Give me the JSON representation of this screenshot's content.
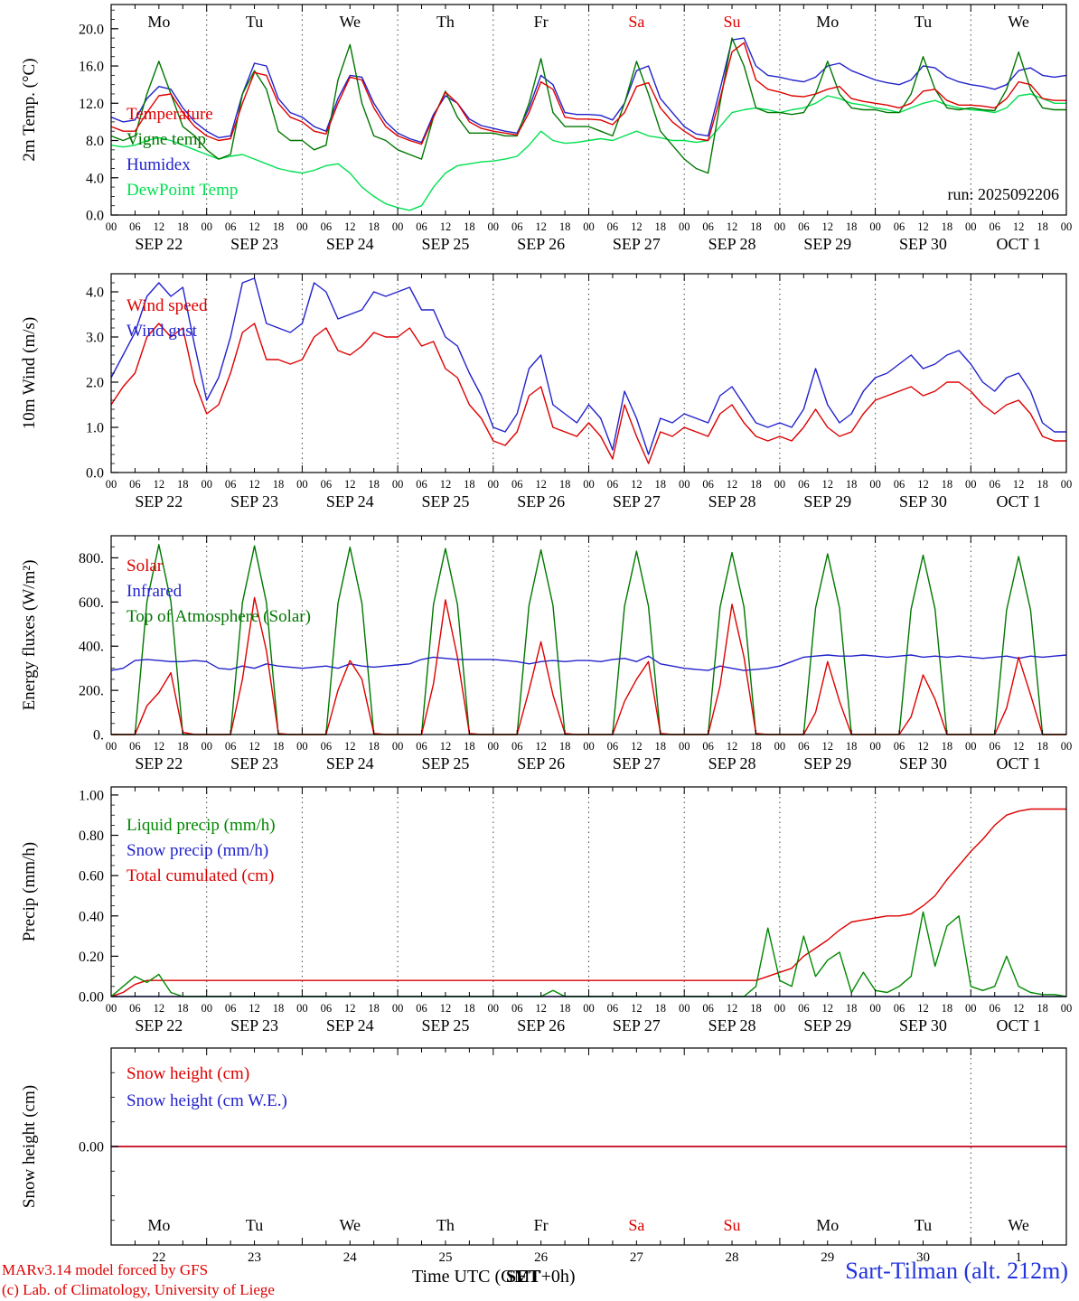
{
  "meta": {
    "run_label": "run: 2025092206",
    "footer_left1": "MARv3.14 model forced by GFS",
    "footer_left2": "(c) Lab. of Climatology, University of Liege",
    "footer_center": "Time UTC (GMT+0h)",
    "footer_center_overlay": "SET",
    "footer_right": "Sart-Tilman (alt. 212m)"
  },
  "colors": {
    "red": "#dd0000",
    "blue": "#2222cc",
    "green": "#007700",
    "lightgreen": "#00e050",
    "liquid": "#008800",
    "station_blue": "#2233dd"
  },
  "x_axis": {
    "total_hours": 240,
    "hours_step": 3,
    "hour_labels": [
      "00",
      "06",
      "12",
      "18"
    ],
    "dates": [
      "SEP 22",
      "SEP 23",
      "SEP 24",
      "SEP 25",
      "SEP 26",
      "SEP 27",
      "SEP 28",
      "SEP 29",
      "SEP 30",
      "OCT 1"
    ],
    "days": [
      "Mo",
      "Tu",
      "We",
      "Th",
      "Fr",
      "Sa",
      "Su",
      "Mo",
      "Tu",
      "We"
    ],
    "day_numbers": [
      "22",
      "23",
      "24",
      "25",
      "26",
      "27",
      "28",
      "29",
      "30",
      "1"
    ],
    "red_day_indices": [
      5,
      6
    ]
  },
  "chart_data": [
    {
      "type": "line",
      "ylabel": "2m Temp. (°C)",
      "ylim": [
        0,
        22.6
      ],
      "yticks": [
        0,
        4,
        8,
        12,
        16,
        20
      ],
      "ytick_labels": [
        "0.0",
        "4.0",
        "8.0",
        "12.0",
        "16.0",
        "20.0"
      ],
      "yminor": 1,
      "series": [
        {
          "name": "Temperature",
          "color": "#dd0000",
          "values": [
            9.5,
            9.0,
            9.0,
            11.0,
            12.8,
            13.0,
            11.0,
            9.5,
            8.5,
            8.0,
            8.2,
            12.0,
            15.3,
            15.0,
            12.0,
            10.5,
            10.0,
            9.0,
            8.7,
            12.0,
            14.8,
            14.5,
            11.5,
            9.5,
            8.5,
            8.0,
            7.6,
            10.5,
            13.2,
            12.0,
            10.0,
            9.3,
            9.0,
            8.8,
            8.6,
            11.0,
            14.3,
            13.5,
            10.5,
            10.3,
            10.3,
            10.2,
            9.7,
            11.0,
            13.8,
            14.2,
            11.5,
            10.0,
            9.0,
            8.2,
            8.0,
            12.5,
            17.5,
            18.5,
            14.5,
            13.5,
            13.2,
            12.8,
            12.7,
            13.0,
            13.5,
            13.8,
            12.5,
            12.2,
            12.0,
            11.8,
            11.5,
            12.0,
            13.3,
            13.5,
            12.3,
            11.8,
            11.8,
            11.7,
            11.5,
            12.5,
            14.3,
            14.0,
            12.5,
            12.3,
            12.3
          ]
        },
        {
          "name": "Vigne temp",
          "color": "#007700",
          "values": [
            8.5,
            8.0,
            8.5,
            13.0,
            16.5,
            13.0,
            9.5,
            8.5,
            7.0,
            6.0,
            6.5,
            13.0,
            15.5,
            13.5,
            9.0,
            8.0,
            8.0,
            7.0,
            7.5,
            14.5,
            18.3,
            12.0,
            8.5,
            8.0,
            7.0,
            6.5,
            6.0,
            10.5,
            13.3,
            10.5,
            8.8,
            8.8,
            8.8,
            8.5,
            8.5,
            12.0,
            16.8,
            11.0,
            9.5,
            9.5,
            9.5,
            9.0,
            8.5,
            12.0,
            16.5,
            13.0,
            9.0,
            7.5,
            6.0,
            5.0,
            4.5,
            12.0,
            19.0,
            16.0,
            11.5,
            11.0,
            11.0,
            10.8,
            11.0,
            13.0,
            16.5,
            13.0,
            11.5,
            11.3,
            11.3,
            11.0,
            11.0,
            13.0,
            17.0,
            13.5,
            11.5,
            11.3,
            11.5,
            11.3,
            11.2,
            13.5,
            17.5,
            13.5,
            11.5,
            11.3,
            11.3
          ]
        },
        {
          "name": "Humidex",
          "color": "#2222cc",
          "values": [
            10.5,
            10.0,
            10.2,
            12.5,
            13.8,
            13.5,
            11.5,
            10.0,
            9.0,
            8.3,
            8.5,
            13.0,
            16.3,
            16.0,
            12.5,
            11.0,
            10.5,
            9.5,
            9.0,
            12.5,
            15.0,
            14.8,
            12.0,
            10.0,
            8.8,
            8.2,
            7.8,
            10.8,
            12.8,
            12.0,
            10.3,
            9.6,
            9.3,
            9.0,
            8.8,
            11.5,
            15.0,
            14.0,
            11.0,
            10.8,
            10.8,
            10.7,
            10.2,
            12.0,
            15.5,
            16.0,
            12.5,
            11.0,
            9.5,
            8.7,
            8.5,
            13.5,
            18.8,
            19.0,
            16.0,
            15.0,
            14.8,
            14.5,
            14.3,
            14.8,
            16.0,
            16.3,
            15.5,
            15.0,
            14.5,
            14.2,
            14.0,
            14.5,
            16.0,
            15.8,
            14.8,
            14.3,
            14.0,
            13.8,
            13.5,
            14.0,
            15.5,
            15.8,
            15.0,
            14.8,
            15.0
          ]
        },
        {
          "name": "DewPoint Temp",
          "color": "#00e050",
          "values": [
            7.5,
            7.3,
            7.5,
            8.0,
            8.3,
            8.0,
            7.5,
            7.0,
            6.5,
            6.0,
            6.3,
            6.5,
            6.0,
            5.5,
            5.0,
            4.7,
            4.5,
            4.8,
            5.3,
            5.5,
            4.5,
            3.0,
            2.0,
            1.2,
            0.8,
            0.5,
            1.0,
            3.0,
            4.5,
            5.3,
            5.5,
            5.7,
            5.8,
            6.0,
            6.3,
            7.5,
            9.0,
            8.0,
            7.7,
            7.8,
            8.0,
            8.2,
            8.0,
            8.5,
            9.0,
            8.5,
            8.3,
            8.0,
            8.0,
            7.8,
            8.0,
            9.5,
            11.0,
            11.3,
            11.5,
            11.3,
            11.0,
            11.3,
            11.5,
            12.0,
            12.8,
            12.5,
            12.0,
            11.8,
            11.5,
            11.3,
            11.0,
            11.5,
            12.0,
            12.3,
            11.8,
            11.5,
            11.3,
            11.2,
            11.0,
            11.5,
            12.8,
            13.0,
            12.5,
            12.0,
            12.0
          ]
        }
      ]
    },
    {
      "type": "line",
      "ylabel": "10m Wind (m/s)",
      "ylim": [
        0,
        4.4
      ],
      "yticks": [
        0,
        1,
        2,
        3,
        4
      ],
      "ytick_labels": [
        "0.0",
        "1.0",
        "2.0",
        "3.0",
        "4.0"
      ],
      "yminor": 0.2,
      "series": [
        {
          "name": "Wind speed",
          "color": "#dd0000",
          "values": [
            1.5,
            1.9,
            2.2,
            3.0,
            3.3,
            3.0,
            3.2,
            2.0,
            1.3,
            1.5,
            2.2,
            3.1,
            3.3,
            2.5,
            2.5,
            2.4,
            2.5,
            3.0,
            3.2,
            2.7,
            2.6,
            2.8,
            3.1,
            3.0,
            3.0,
            3.2,
            2.8,
            2.9,
            2.3,
            2.1,
            1.5,
            1.2,
            0.7,
            0.6,
            0.9,
            1.7,
            1.9,
            1.0,
            0.9,
            0.8,
            1.1,
            0.8,
            0.3,
            1.5,
            0.8,
            0.2,
            0.9,
            0.8,
            1.0,
            0.9,
            0.8,
            1.3,
            1.5,
            1.1,
            0.8,
            0.7,
            0.8,
            0.7,
            1.0,
            1.4,
            1.0,
            0.8,
            0.9,
            1.3,
            1.6,
            1.7,
            1.8,
            1.9,
            1.7,
            1.8,
            2.0,
            2.0,
            1.8,
            1.5,
            1.3,
            1.5,
            1.6,
            1.3,
            0.8,
            0.7,
            0.7
          ]
        },
        {
          "name": "Wind gust",
          "color": "#2222cc",
          "values": [
            2.1,
            2.6,
            3.1,
            3.9,
            4.2,
            3.9,
            4.1,
            2.8,
            1.6,
            2.1,
            3.0,
            4.2,
            4.3,
            3.3,
            3.2,
            3.1,
            3.3,
            4.2,
            4.0,
            3.4,
            3.5,
            3.6,
            4.0,
            3.9,
            4.0,
            4.1,
            3.6,
            3.6,
            3.0,
            2.8,
            2.2,
            1.7,
            1.0,
            0.9,
            1.3,
            2.3,
            2.6,
            1.5,
            1.3,
            1.1,
            1.5,
            1.2,
            0.5,
            1.8,
            1.2,
            0.4,
            1.2,
            1.1,
            1.3,
            1.2,
            1.1,
            1.7,
            1.9,
            1.5,
            1.1,
            1.0,
            1.1,
            1.0,
            1.4,
            2.3,
            1.5,
            1.1,
            1.3,
            1.8,
            2.1,
            2.2,
            2.4,
            2.6,
            2.3,
            2.4,
            2.6,
            2.7,
            2.4,
            2.0,
            1.8,
            2.1,
            2.2,
            1.8,
            1.1,
            0.9,
            0.9
          ]
        }
      ]
    },
    {
      "type": "line",
      "ylabel": "Energy fluxes (W/m²)",
      "ylim": [
        0,
        900
      ],
      "yticks": [
        0,
        200,
        400,
        600,
        800
      ],
      "ytick_labels": [
        "0.",
        "200.",
        "400.",
        "600.",
        "800."
      ],
      "yminor": 50,
      "series": [
        {
          "name": "Solar",
          "color": "#dd0000",
          "values": [
            0,
            0,
            0,
            130,
            190,
            280,
            10,
            0,
            0,
            0,
            0,
            250,
            620,
            380,
            5,
            0,
            0,
            0,
            0,
            200,
            335,
            250,
            5,
            0,
            0,
            0,
            0,
            230,
            610,
            350,
            5,
            0,
            0,
            0,
            0,
            200,
            420,
            180,
            5,
            0,
            0,
            0,
            0,
            150,
            250,
            330,
            5,
            0,
            0,
            0,
            0,
            220,
            590,
            350,
            5,
            0,
            0,
            0,
            0,
            100,
            330,
            150,
            0,
            0,
            0,
            0,
            0,
            80,
            270,
            160,
            0,
            0,
            0,
            0,
            0,
            120,
            350,
            180,
            0,
            0,
            0
          ]
        },
        {
          "name": "Infrared",
          "color": "#2222cc",
          "values": [
            290,
            300,
            335,
            340,
            335,
            330,
            330,
            335,
            330,
            300,
            295,
            310,
            300,
            320,
            310,
            305,
            300,
            305,
            310,
            300,
            320,
            310,
            305,
            310,
            315,
            320,
            340,
            350,
            345,
            340,
            340,
            340,
            340,
            335,
            330,
            320,
            330,
            335,
            330,
            335,
            335,
            330,
            340,
            345,
            330,
            355,
            320,
            310,
            300,
            295,
            290,
            310,
            300,
            290,
            295,
            300,
            310,
            330,
            350,
            355,
            360,
            355,
            355,
            360,
            355,
            350,
            355,
            360,
            350,
            355,
            350,
            355,
            350,
            345,
            350,
            355,
            345,
            355,
            350,
            355,
            360
          ]
        },
        {
          "name": "Top of Atmosphere (Solar)",
          "color": "#007700",
          "values": [
            0,
            0,
            0,
            602,
            860,
            602,
            0,
            0,
            0,
            0,
            0,
            598,
            854,
            598,
            0,
            0,
            0,
            0,
            0,
            594,
            848,
            594,
            0,
            0,
            0,
            0,
            0,
            589,
            842,
            589,
            0,
            0,
            0,
            0,
            0,
            585,
            836,
            585,
            0,
            0,
            0,
            0,
            0,
            581,
            830,
            581,
            0,
            0,
            0,
            0,
            0,
            577,
            824,
            577,
            0,
            0,
            0,
            0,
            0,
            573,
            818,
            573,
            0,
            0,
            0,
            0,
            0,
            568,
            812,
            568,
            0,
            0,
            0,
            0,
            0,
            564,
            806,
            564,
            0,
            0,
            0
          ]
        }
      ]
    },
    {
      "type": "line",
      "ylabel": "Precip (mm/h)",
      "ylim": [
        0,
        1.04
      ],
      "yticks": [
        0,
        0.2,
        0.4,
        0.6,
        0.8,
        1.0
      ],
      "ytick_labels": [
        "0.00",
        "0.20",
        "0.40",
        "0.60",
        "0.80",
        "1.00"
      ],
      "yminor": 0.05,
      "series": [
        {
          "name": "Liquid precip (mm/h)",
          "color": "#008800",
          "values": [
            0,
            0.05,
            0.1,
            0.07,
            0.11,
            0.02,
            0,
            0,
            0,
            0,
            0,
            0,
            0,
            0,
            0,
            0,
            0,
            0,
            0,
            0,
            0,
            0,
            0,
            0,
            0,
            0,
            0,
            0,
            0,
            0,
            0,
            0,
            0,
            0,
            0,
            0,
            0,
            0.03,
            0,
            0,
            0,
            0,
            0,
            0,
            0,
            0,
            0,
            0,
            0,
            0,
            0,
            0,
            0,
            0,
            0.05,
            0.34,
            0.08,
            0.05,
            0.3,
            0.1,
            0.18,
            0.22,
            0.02,
            0.12,
            0.03,
            0.02,
            0.05,
            0.1,
            0.42,
            0.15,
            0.35,
            0.4,
            0.05,
            0.03,
            0.05,
            0.2,
            0.05,
            0.02,
            0.01,
            0.01,
            0
          ]
        },
        {
          "name": "Snow precip (mm/h)",
          "color": "#2222cc",
          "const": 0
        },
        {
          "name": "Total cumulated (cm)",
          "color": "#dd0000",
          "values": [
            0,
            0.02,
            0.06,
            0.08,
            0.08,
            0.08,
            0.08,
            0.08,
            0.08,
            0.08,
            0.08,
            0.08,
            0.08,
            0.08,
            0.08,
            0.08,
            0.08,
            0.08,
            0.08,
            0.08,
            0.08,
            0.08,
            0.08,
            0.08,
            0.08,
            0.08,
            0.08,
            0.08,
            0.08,
            0.08,
            0.08,
            0.08,
            0.08,
            0.08,
            0.08,
            0.08,
            0.08,
            0.08,
            0.08,
            0.08,
            0.08,
            0.08,
            0.08,
            0.08,
            0.08,
            0.08,
            0.08,
            0.08,
            0.08,
            0.08,
            0.08,
            0.08,
            0.08,
            0.08,
            0.08,
            0.1,
            0.12,
            0.14,
            0.2,
            0.24,
            0.28,
            0.33,
            0.37,
            0.38,
            0.39,
            0.4,
            0.4,
            0.41,
            0.45,
            0.5,
            0.58,
            0.65,
            0.72,
            0.78,
            0.85,
            0.9,
            0.92,
            0.93,
            0.93,
            0.93,
            0.93
          ]
        }
      ]
    },
    {
      "type": "line",
      "ylabel": "Snow height (cm)",
      "ylim": [
        -1,
        1
      ],
      "yticks": [
        0
      ],
      "ytick_labels": [
        "0.00"
      ],
      "yminor": 0.25,
      "series": [
        {
          "name": "Snow height (cm)",
          "color": "#dd0000",
          "const": 0
        },
        {
          "name": "Snow height (cm W.E.)",
          "color": "#2222cc",
          "const": 0
        }
      ]
    }
  ]
}
